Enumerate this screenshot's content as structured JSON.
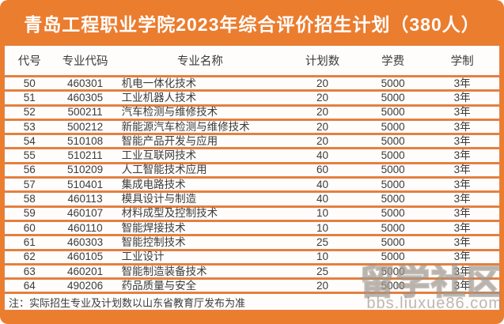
{
  "title": "青岛工程职业学院2023年综合评价招生计划（380人）",
  "table": {
    "columns": [
      "代号",
      "专业代码",
      "专业名称",
      "计划数",
      "学费",
      "学制"
    ],
    "rows": [
      [
        "50",
        "460301",
        "机电一体化技术",
        "20",
        "5000",
        "3年"
      ],
      [
        "51",
        "460305",
        "工业机器人技术",
        "20",
        "5000",
        "3年"
      ],
      [
        "52",
        "500211",
        "汽车检测与维修技术",
        "20",
        "5000",
        "3年"
      ],
      [
        "53",
        "500212",
        "新能源汽车检测与维修技术",
        "20",
        "5000",
        "3年"
      ],
      [
        "54",
        "510108",
        "智能产品开发与应用",
        "20",
        "5000",
        "3年"
      ],
      [
        "55",
        "510211",
        "工业互联网技术",
        "40",
        "5000",
        "3年"
      ],
      [
        "56",
        "510209",
        "人工智能技术应用",
        "60",
        "5000",
        "3年"
      ],
      [
        "57",
        "510401",
        "集成电路技术",
        "40",
        "5000",
        "3年"
      ],
      [
        "58",
        "460113",
        "模具设计与制造",
        "40",
        "5000",
        "3年"
      ],
      [
        "59",
        "460107",
        "材料成型及控制技术",
        "10",
        "5000",
        "3年"
      ],
      [
        "60",
        "460110",
        "智能焊接技术",
        "10",
        "5000",
        "3年"
      ],
      [
        "61",
        "460303",
        "智能控制技术",
        "25",
        "5000",
        "3年"
      ],
      [
        "62",
        "460105",
        "工业设计",
        "10",
        "5000",
        "3年"
      ],
      [
        "63",
        "460201",
        "智能制造装备技术",
        "25",
        "5000",
        "3年"
      ],
      [
        "64",
        "490206",
        "药品质量与安全",
        "20",
        "5000",
        "3年"
      ]
    ],
    "total_planned": "380"
  },
  "note": "注：实际招生专业及计划数以山东省教育厅发布为准",
  "watermark": {
    "text": "留学社区",
    "url": "bbs.liuxue86.com"
  },
  "colors": {
    "banner_orange": "#EB7D2F",
    "row_border_orange": "#E0824A",
    "text_dark": "#3b3b3b",
    "title_white": "#ffffff"
  }
}
